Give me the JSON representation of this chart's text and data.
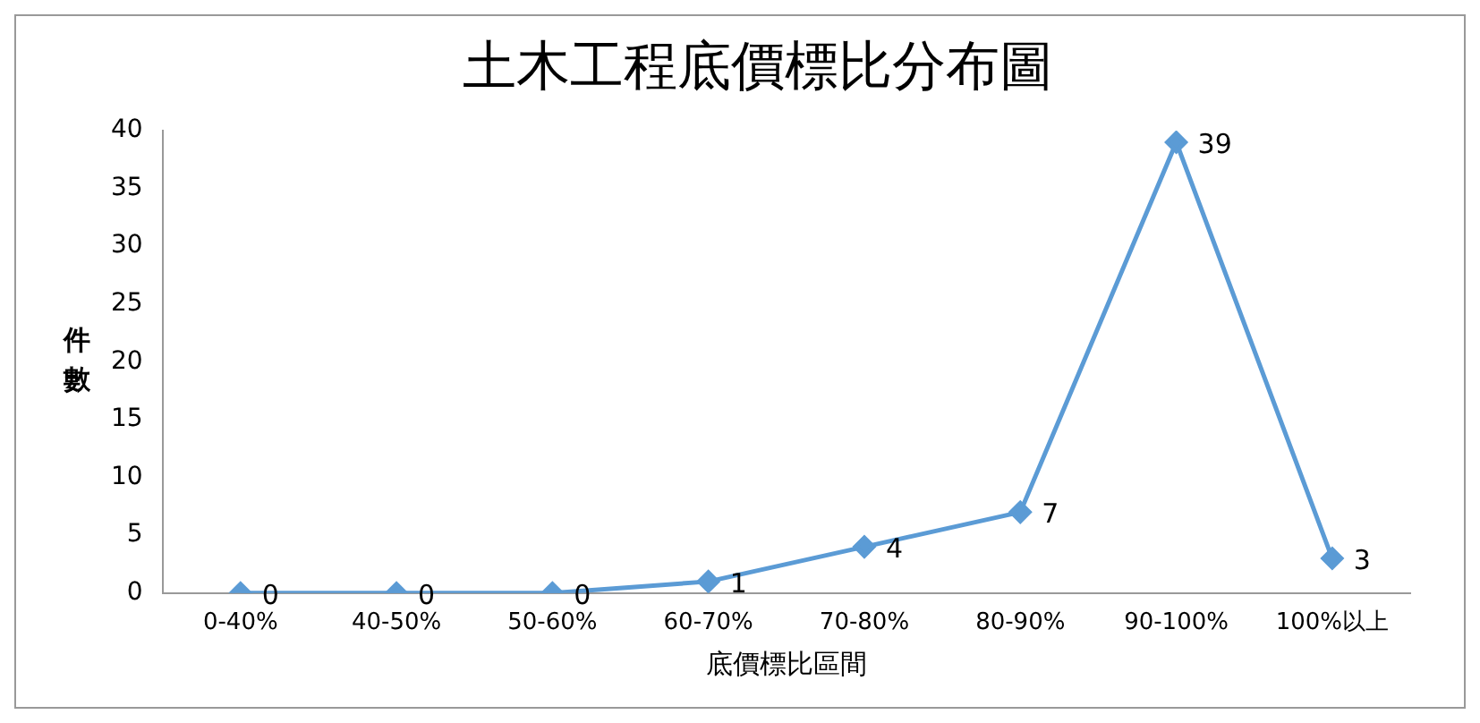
{
  "chart_data": {
    "type": "line",
    "title": "土木工程底價標比分布圖",
    "xlabel": "底價標比區間",
    "ylabel": "件數",
    "categories": [
      "0-40%",
      "40-50%",
      "50-60%",
      "60-70%",
      "70-80%",
      "80-90%",
      "90-100%",
      "100%以上"
    ],
    "series": [
      {
        "color": "#5b9bd5",
        "values": [
          0,
          0,
          0,
          1,
          4,
          7,
          39,
          3
        ]
      }
    ],
    "ylim": [
      0,
      40
    ],
    "yticks": [
      0,
      5,
      10,
      15,
      20,
      25,
      30,
      35,
      40
    ],
    "grid": false,
    "legend": false,
    "marker": "diamond",
    "line_style": "solid",
    "data_labels": true
  }
}
